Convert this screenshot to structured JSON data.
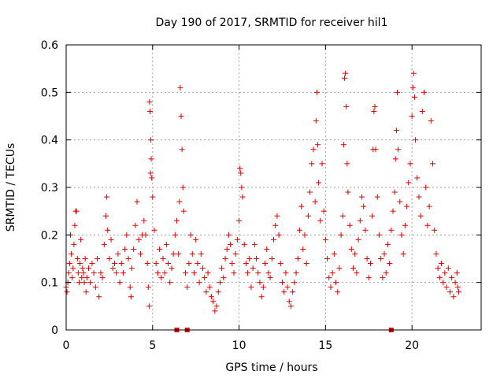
{
  "chart_data": {
    "type": "scatter",
    "title": "Day 190 of 2017, SRMTID for receiver hil1",
    "xlabel": "GPS time / hours",
    "ylabel": "SRMTID / TECUs",
    "xlim": [
      0,
      24
    ],
    "ylim": [
      0,
      0.6
    ],
    "xticks": [
      "0",
      "5",
      "10",
      "15",
      "20"
    ],
    "yticks": [
      "0",
      "0.1",
      "0.2",
      "0.3",
      "0.4",
      "0.5",
      "0.6"
    ],
    "grid": true,
    "color": "#dd0000",
    "series": [
      {
        "name": "SRMTID",
        "marker": "plus",
        "points": [
          [
            0.0,
            0.09
          ],
          [
            0.05,
            0.08
          ],
          [
            0.1,
            0.1
          ],
          [
            0.15,
            0.12
          ],
          [
            0.2,
            0.14
          ],
          [
            0.25,
            0.2
          ],
          [
            0.3,
            0.16
          ],
          [
            0.35,
            0.11
          ],
          [
            0.4,
            0.13
          ],
          [
            0.45,
            0.18
          ],
          [
            0.5,
            0.22
          ],
          [
            0.55,
            0.25
          ],
          [
            0.6,
            0.25
          ],
          [
            0.65,
            0.15
          ],
          [
            0.7,
            0.12
          ],
          [
            0.75,
            0.1
          ],
          [
            0.8,
            0.14
          ],
          [
            0.85,
            0.19
          ],
          [
            0.9,
            0.11
          ],
          [
            0.95,
            0.13
          ],
          [
            1.0,
            0.12
          ],
          [
            1.05,
            0.1
          ],
          [
            1.1,
            0.15
          ],
          [
            1.15,
            0.08
          ],
          [
            1.2,
            0.11
          ],
          [
            1.3,
            0.13
          ],
          [
            1.4,
            0.1
          ],
          [
            1.5,
            0.14
          ],
          [
            1.6,
            0.12
          ],
          [
            1.7,
            0.09
          ],
          [
            1.8,
            0.15
          ],
          [
            1.9,
            0.07
          ],
          [
            2.0,
            0.12
          ],
          [
            2.1,
            0.11
          ],
          [
            2.2,
            0.18
          ],
          [
            2.3,
            0.24
          ],
          [
            2.35,
            0.28
          ],
          [
            2.4,
            0.21
          ],
          [
            2.5,
            0.15
          ],
          [
            2.6,
            0.19
          ],
          [
            2.7,
            0.13
          ],
          [
            2.8,
            0.14
          ],
          [
            2.9,
            0.12
          ],
          [
            3.0,
            0.16
          ],
          [
            3.1,
            0.1
          ],
          [
            3.2,
            0.14
          ],
          [
            3.3,
            0.12
          ],
          [
            3.4,
            0.17
          ],
          [
            3.5,
            0.2
          ],
          [
            3.6,
            0.15
          ],
          [
            3.7,
            0.09
          ],
          [
            3.75,
            0.07
          ],
          [
            3.8,
            0.13
          ],
          [
            3.9,
            0.17
          ],
          [
            4.0,
            0.22
          ],
          [
            4.1,
            0.27
          ],
          [
            4.2,
            0.19
          ],
          [
            4.3,
            0.16
          ],
          [
            4.4,
            0.2
          ],
          [
            4.5,
            0.23
          ],
          [
            4.6,
            0.2
          ],
          [
            4.7,
            0.14
          ],
          [
            4.75,
            0.09
          ],
          [
            4.8,
            0.05
          ],
          [
            4.82,
            0.48
          ],
          [
            4.85,
            0.46
          ],
          [
            4.88,
            0.33
          ],
          [
            4.9,
            0.4
          ],
          [
            4.92,
            0.36
          ],
          [
            4.95,
            0.32
          ],
          [
            5.0,
            0.28
          ],
          [
            5.1,
            0.21
          ],
          [
            5.2,
            0.14
          ],
          [
            5.3,
            0.12
          ],
          [
            5.4,
            0.17
          ],
          [
            5.5,
            0.11
          ],
          [
            5.6,
            0.15
          ],
          [
            5.7,
            0.12
          ],
          [
            5.8,
            0.18
          ],
          [
            5.9,
            0.14
          ],
          [
            6.0,
            0.1
          ],
          [
            6.1,
            0.13
          ],
          [
            6.2,
            0.16
          ],
          [
            6.3,
            0.2
          ],
          [
            6.4,
            0.23
          ],
          [
            6.5,
            0.16
          ],
          [
            6.55,
            0.27
          ],
          [
            6.6,
            0.51
          ],
          [
            6.65,
            0.45
          ],
          [
            6.7,
            0.38
          ],
          [
            6.75,
            0.3
          ],
          [
            6.8,
            0.25
          ],
          [
            6.9,
            0.12
          ],
          [
            7.0,
            0.09
          ],
          [
            7.1,
            0.14
          ],
          [
            7.2,
            0.2
          ],
          [
            7.3,
            0.16
          ],
          [
            7.4,
            0.12
          ],
          [
            7.5,
            0.19
          ],
          [
            7.6,
            0.14
          ],
          [
            7.7,
            0.1
          ],
          [
            7.8,
            0.16
          ],
          [
            7.9,
            0.13
          ],
          [
            8.0,
            0.11
          ],
          [
            8.1,
            0.08
          ],
          [
            8.2,
            0.12
          ],
          [
            8.3,
            0.09
          ],
          [
            8.4,
            0.07
          ],
          [
            8.5,
            0.06
          ],
          [
            8.6,
            0.04
          ],
          [
            8.7,
            0.05
          ],
          [
            8.8,
            0.08
          ],
          [
            8.9,
            0.1
          ],
          [
            9.0,
            0.13
          ],
          [
            9.1,
            0.11
          ],
          [
            9.2,
            0.15
          ],
          [
            9.3,
            0.17
          ],
          [
            9.4,
            0.2
          ],
          [
            9.5,
            0.18
          ],
          [
            9.6,
            0.14
          ],
          [
            9.7,
            0.12
          ],
          [
            9.8,
            0.16
          ],
          [
            9.9,
            0.19
          ],
          [
            10.0,
            0.23
          ],
          [
            10.05,
            0.34
          ],
          [
            10.1,
            0.33
          ],
          [
            10.15,
            0.3
          ],
          [
            10.2,
            0.28
          ],
          [
            10.3,
            0.18
          ],
          [
            10.4,
            0.14
          ],
          [
            10.5,
            0.12
          ],
          [
            10.6,
            0.15
          ],
          [
            10.7,
            0.09
          ],
          [
            10.8,
            0.13
          ],
          [
            10.9,
            0.18
          ],
          [
            11.0,
            0.15
          ],
          [
            11.1,
            0.12
          ],
          [
            11.2,
            0.1
          ],
          [
            11.3,
            0.07
          ],
          [
            11.4,
            0.09
          ],
          [
            11.5,
            0.14
          ],
          [
            11.6,
            0.17
          ],
          [
            11.7,
            0.12
          ],
          [
            11.8,
            0.11
          ],
          [
            11.9,
            0.15
          ],
          [
            12.0,
            0.19
          ],
          [
            12.1,
            0.22
          ],
          [
            12.2,
            0.24
          ],
          [
            12.3,
            0.2
          ],
          [
            12.4,
            0.14
          ],
          [
            12.5,
            0.1
          ],
          [
            12.6,
            0.08
          ],
          [
            12.7,
            0.12
          ],
          [
            12.8,
            0.09
          ],
          [
            12.9,
            0.06
          ],
          [
            13.0,
            0.05
          ],
          [
            13.1,
            0.08
          ],
          [
            13.2,
            0.1
          ],
          [
            13.3,
            0.12
          ],
          [
            13.4,
            0.15
          ],
          [
            13.5,
            0.21
          ],
          [
            13.6,
            0.26
          ],
          [
            13.7,
            0.17
          ],
          [
            13.8,
            0.2
          ],
          [
            13.9,
            0.14
          ],
          [
            14.0,
            0.24
          ],
          [
            14.1,
            0.29
          ],
          [
            14.2,
            0.35
          ],
          [
            14.3,
            0.38
          ],
          [
            14.4,
            0.27
          ],
          [
            14.45,
            0.44
          ],
          [
            14.5,
            0.5
          ],
          [
            14.55,
            0.39
          ],
          [
            14.6,
            0.31
          ],
          [
            14.7,
            0.23
          ],
          [
            14.8,
            0.35
          ],
          [
            14.9,
            0.25
          ],
          [
            15.0,
            0.19
          ],
          [
            15.1,
            0.15
          ],
          [
            15.2,
            0.11
          ],
          [
            15.3,
            0.09
          ],
          [
            15.4,
            0.12
          ],
          [
            15.5,
            0.16
          ],
          [
            15.6,
            0.1
          ],
          [
            15.7,
            0.08
          ],
          [
            15.8,
            0.13
          ],
          [
            15.9,
            0.2
          ],
          [
            16.0,
            0.24
          ],
          [
            16.05,
            0.39
          ],
          [
            16.1,
            0.53
          ],
          [
            16.15,
            0.54
          ],
          [
            16.2,
            0.47
          ],
          [
            16.25,
            0.35
          ],
          [
            16.3,
            0.29
          ],
          [
            16.4,
            0.22
          ],
          [
            16.5,
            0.17
          ],
          [
            16.6,
            0.13
          ],
          [
            16.7,
            0.16
          ],
          [
            16.8,
            0.12
          ],
          [
            16.9,
            0.19
          ],
          [
            17.0,
            0.23
          ],
          [
            17.1,
            0.28
          ],
          [
            17.2,
            0.26
          ],
          [
            17.3,
            0.21
          ],
          [
            17.4,
            0.15
          ],
          [
            17.5,
            0.11
          ],
          [
            17.6,
            0.14
          ],
          [
            17.7,
            0.24
          ],
          [
            17.75,
            0.38
          ],
          [
            17.8,
            0.46
          ],
          [
            17.85,
            0.47
          ],
          [
            17.9,
            0.38
          ],
          [
            18.0,
            0.28
          ],
          [
            18.1,
            0.2
          ],
          [
            18.2,
            0.15
          ],
          [
            18.3,
            0.11
          ],
          [
            18.4,
            0.16
          ],
          [
            18.5,
            0.12
          ],
          [
            18.6,
            0.18
          ],
          [
            18.7,
            0.14
          ],
          [
            18.8,
            0.21
          ],
          [
            18.9,
            0.25
          ],
          [
            19.0,
            0.29
          ],
          [
            19.05,
            0.36
          ],
          [
            19.1,
            0.42
          ],
          [
            19.15,
            0.5
          ],
          [
            19.2,
            0.38
          ],
          [
            19.3,
            0.27
          ],
          [
            19.4,
            0.2
          ],
          [
            19.5,
            0.16
          ],
          [
            19.6,
            0.22
          ],
          [
            19.7,
            0.26
          ],
          [
            19.8,
            0.31
          ],
          [
            19.9,
            0.35
          ],
          [
            20.0,
            0.45
          ],
          [
            20.05,
            0.51
          ],
          [
            20.1,
            0.54
          ],
          [
            20.15,
            0.49
          ],
          [
            20.2,
            0.4
          ],
          [
            20.3,
            0.32
          ],
          [
            20.4,
            0.28
          ],
          [
            20.5,
            0.24
          ],
          [
            20.6,
            0.46
          ],
          [
            20.7,
            0.5
          ],
          [
            20.8,
            0.3
          ],
          [
            20.9,
            0.22
          ],
          [
            21.0,
            0.26
          ],
          [
            21.1,
            0.44
          ],
          [
            21.2,
            0.35
          ],
          [
            21.3,
            0.21
          ],
          [
            21.4,
            0.16
          ],
          [
            21.5,
            0.13
          ],
          [
            21.6,
            0.11
          ],
          [
            21.7,
            0.14
          ],
          [
            21.8,
            0.1
          ],
          [
            21.9,
            0.12
          ],
          [
            22.0,
            0.09
          ],
          [
            22.1,
            0.13
          ],
          [
            22.2,
            0.08
          ],
          [
            22.3,
            0.11
          ],
          [
            22.4,
            0.07
          ],
          [
            22.5,
            0.1
          ],
          [
            22.6,
            0.12
          ],
          [
            22.65,
            0.09
          ],
          [
            22.7,
            0.08
          ]
        ]
      }
    ],
    "bottom_markers": [
      6.4,
      7.0,
      18.8
    ]
  }
}
